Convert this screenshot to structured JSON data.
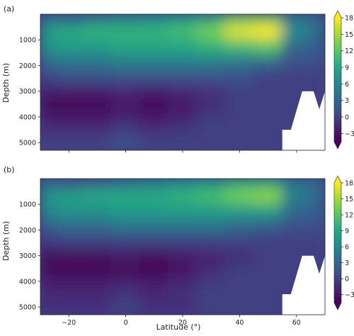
{
  "chart_data": [
    {
      "type": "heatmap",
      "panel_label": "(a)",
      "xlabel": "",
      "ylabel": "Depth (m)",
      "xlim": [
        -30,
        70
      ],
      "ylim": [
        5300,
        0
      ],
      "x_ticks": [
        -20,
        0,
        20,
        40,
        60
      ],
      "x_tick_labels_shown": false,
      "y_ticks": [
        1000,
        2000,
        3000,
        4000,
        5000
      ],
      "colorbar": {
        "min": -4.5,
        "max": 18,
        "ticks": [
          -3,
          0,
          3,
          6,
          9,
          12,
          15,
          18
        ],
        "colormap": "viridis",
        "extend": "both"
      },
      "x": [
        -30,
        -20,
        -10,
        0,
        10,
        20,
        30,
        40,
        50,
        60,
        70
      ],
      "y": [
        100,
        700,
        1300,
        1900,
        2500,
        3100,
        3700,
        4300,
        4900
      ],
      "z": [
        [
          3,
          2,
          4,
          5,
          6,
          7,
          8,
          12,
          12,
          4,
          3
        ],
        [
          8,
          9,
          10,
          10,
          10,
          11,
          13,
          17,
          18,
          6,
          3
        ],
        [
          7,
          8,
          8,
          9,
          9,
          9,
          10,
          11,
          12,
          3,
          2
        ],
        [
          3,
          4,
          4,
          5,
          5,
          5,
          5,
          4,
          3,
          1,
          1
        ],
        [
          0,
          1,
          1,
          1,
          1,
          1,
          1,
          1,
          0,
          0,
          0
        ],
        [
          -3,
          -3,
          -3,
          -2,
          -3,
          -2,
          -1,
          0,
          0,
          0,
          0
        ],
        [
          -4,
          -4,
          -4,
          -3,
          -4,
          -3,
          -1,
          0,
          0,
          0,
          0
        ],
        [
          -2,
          -2,
          -2,
          -1,
          -2,
          -1,
          0,
          0,
          0,
          0,
          0
        ],
        [
          0,
          0,
          0,
          1,
          0,
          0,
          0,
          0,
          0,
          0,
          0
        ]
      ],
      "land_mask": [
        [
          55,
          5300
        ],
        [
          55,
          4500
        ],
        [
          58,
          4500
        ],
        [
          62,
          3000
        ],
        [
          66,
          3000
        ],
        [
          68,
          3700
        ],
        [
          70,
          3000
        ],
        [
          70,
          5300
        ]
      ]
    },
    {
      "type": "heatmap",
      "panel_label": "(b)",
      "xlabel": "Latitude (°)",
      "ylabel": "Depth (m)",
      "xlim": [
        -30,
        70
      ],
      "ylim": [
        5300,
        0
      ],
      "x_ticks": [
        -20,
        0,
        20,
        40,
        60
      ],
      "x_tick_labels_shown": true,
      "y_ticks": [
        1000,
        2000,
        3000,
        4000,
        5000
      ],
      "colorbar": {
        "min": -4.5,
        "max": 18,
        "ticks": [
          -3,
          0,
          3,
          6,
          9,
          12,
          15,
          18
        ],
        "colormap": "viridis",
        "extend": "both"
      },
      "x": [
        -30,
        -20,
        -10,
        0,
        10,
        20,
        30,
        40,
        50,
        60,
        70
      ],
      "y": [
        100,
        700,
        1300,
        1900,
        2500,
        3100,
        3700,
        4300,
        4900
      ],
      "z": [
        [
          3,
          1,
          2,
          4,
          5,
          6,
          7,
          9,
          9,
          4,
          3
        ],
        [
          7,
          8,
          9,
          9,
          9,
          10,
          11,
          13,
          14,
          5,
          3
        ],
        [
          6,
          7,
          7,
          8,
          8,
          8,
          8,
          8,
          8,
          3,
          2
        ],
        [
          2,
          3,
          3,
          4,
          4,
          4,
          4,
          3,
          2,
          1,
          1
        ],
        [
          -1,
          0,
          0,
          0,
          0,
          0,
          0,
          0,
          0,
          0,
          0
        ],
        [
          -4,
          -4,
          -4,
          -3,
          -4,
          -3,
          -2,
          -1,
          0,
          0,
          0
        ],
        [
          -4,
          -4,
          -4,
          -4,
          -4,
          -3,
          -1,
          0,
          0,
          0,
          0
        ],
        [
          -2,
          -2,
          -2,
          -1,
          -2,
          -1,
          0,
          0,
          0,
          0,
          0
        ],
        [
          -1,
          -1,
          -1,
          0,
          -1,
          -1,
          0,
          0,
          0,
          0,
          0
        ]
      ],
      "land_mask": [
        [
          55,
          5300
        ],
        [
          55,
          4500
        ],
        [
          58,
          4500
        ],
        [
          62,
          3000
        ],
        [
          66,
          3000
        ],
        [
          68,
          3700
        ],
        [
          70,
          3000
        ],
        [
          70,
          5300
        ]
      ]
    }
  ]
}
